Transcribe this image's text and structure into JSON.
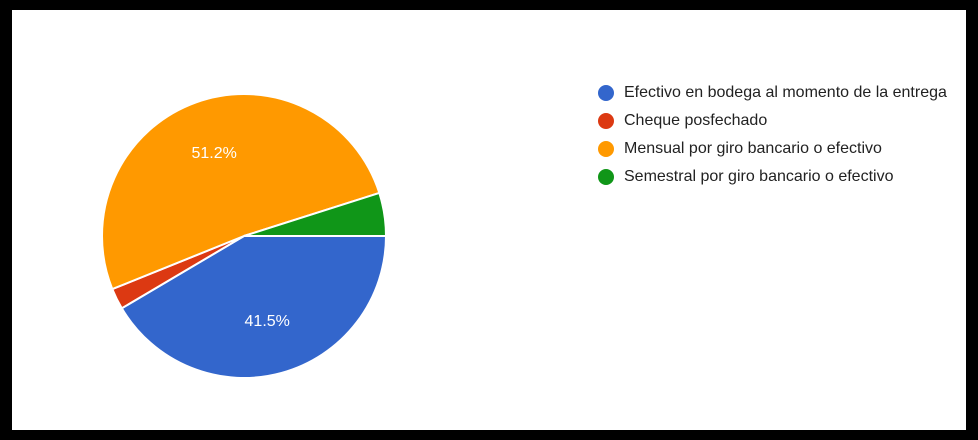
{
  "chart_data": {
    "type": "pie",
    "title": "",
    "slices": [
      {
        "label": "Efectivo en bodega al momento de la entrega",
        "value": 41.5,
        "display": "41.5%",
        "color": "#3366cc"
      },
      {
        "label": "Cheque posfechado",
        "value": 2.4,
        "display": "",
        "color": "#dc3912"
      },
      {
        "label": "Mensual por giro bancario o efectivo",
        "value": 51.2,
        "display": "51.2%",
        "color": "#ff9900"
      },
      {
        "label": "Semestral por giro bancario o efectivo",
        "value": 4.9,
        "display": "",
        "color": "#109618"
      }
    ],
    "legend_position": "right"
  },
  "colors": {
    "background": "#ffffff",
    "frame": "#000000"
  }
}
